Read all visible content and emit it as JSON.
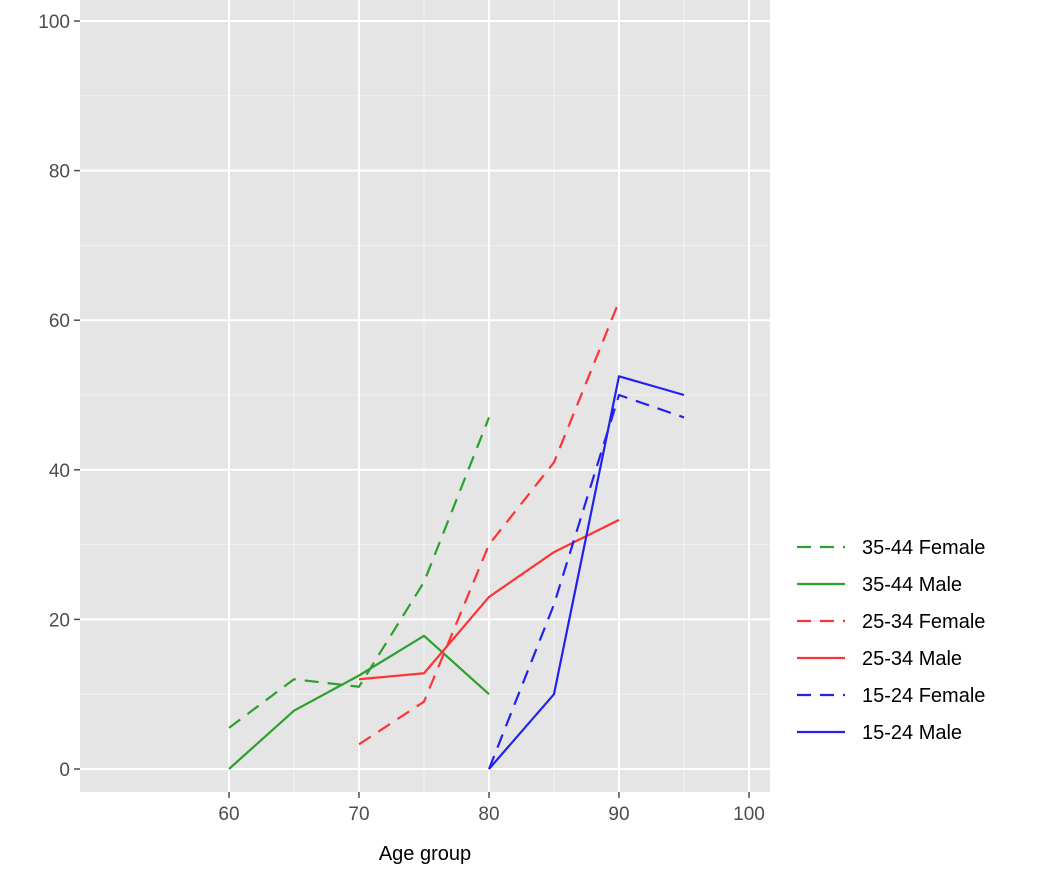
{
  "chart_data": {
    "type": "line",
    "xlabel": "Age group",
    "ylabel": "",
    "xlim": [
      50,
      102
    ],
    "ylim": [
      -3,
      102
    ],
    "xticks": [
      60,
      70,
      80,
      90,
      100
    ],
    "yticks": [
      0,
      20,
      40,
      60,
      80,
      100
    ],
    "grid": true,
    "legend_position": "right",
    "series": [
      {
        "name": "35-44 Female",
        "color": "#2ca02c",
        "dash": "dashed",
        "x": [
          60,
          65,
          70,
          75,
          80
        ],
        "y": [
          5.5,
          12,
          11,
          25,
          47
        ]
      },
      {
        "name": "35-44 Male",
        "color": "#2ca02c",
        "dash": "solid",
        "x": [
          60,
          65,
          70,
          75,
          80
        ],
        "y": [
          0,
          7.8,
          12.5,
          17.8,
          10
        ]
      },
      {
        "name": "25-34 Female",
        "color": "#ff3333",
        "dash": "dashed",
        "x": [
          70,
          75,
          80,
          85,
          90
        ],
        "y": [
          3.3,
          9,
          30,
          41,
          62.5
        ]
      },
      {
        "name": "25-34 Male",
        "color": "#ff3333",
        "dash": "solid",
        "x": [
          70,
          75,
          80,
          85,
          90
        ],
        "y": [
          12,
          12.8,
          23,
          29,
          33.3
        ]
      },
      {
        "name": "15-24 Female",
        "color": "#2222ee",
        "dash": "dashed",
        "x": [
          80,
          85,
          90,
          95
        ],
        "y": [
          0,
          22,
          50,
          47
        ]
      },
      {
        "name": "15-24 Male",
        "color": "#2222ee",
        "dash": "solid",
        "x": [
          80,
          85,
          90,
          95
        ],
        "y": [
          0,
          10,
          52.5,
          50
        ]
      }
    ]
  }
}
